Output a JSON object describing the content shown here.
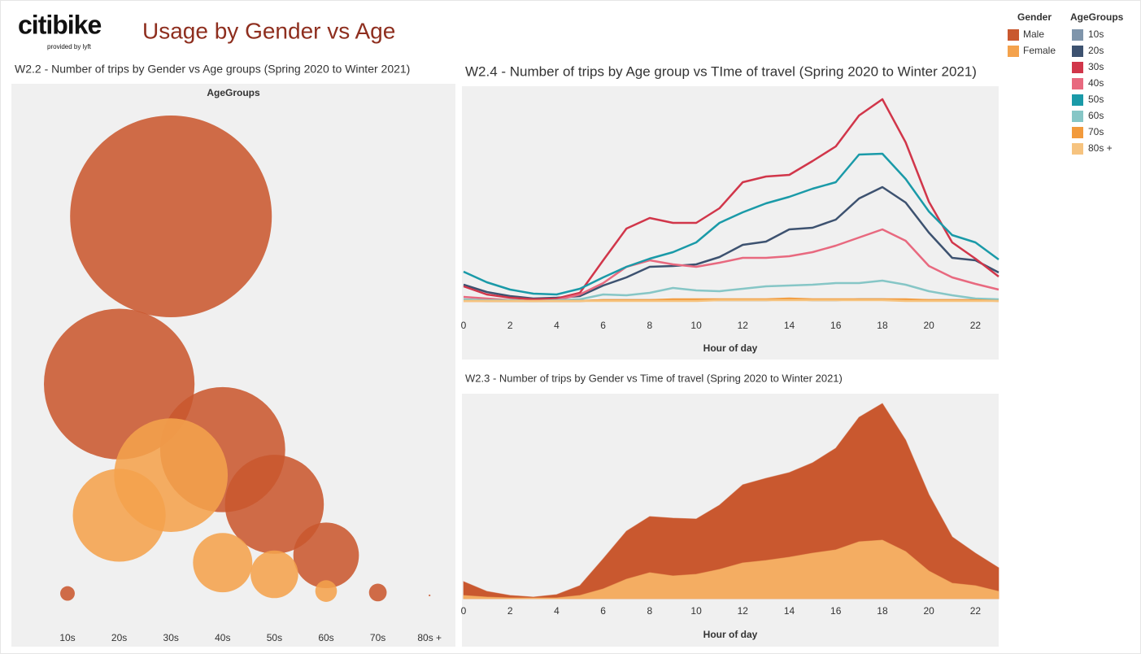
{
  "header": {
    "logo": "citibike",
    "logo_sub": "provided by lyft",
    "title": "Usage by Gender vs Age"
  },
  "chart_data": [
    {
      "type": "bubble",
      "title": "W2.2 - Number of trips by Gender vs Age groups (Spring 2020 to Winter 2021)",
      "x_label": "AgeGroups",
      "legend_title": "Gender",
      "categories": [
        "10s",
        "20s",
        "30s",
        "40s",
        "50s",
        "60s",
        "70s",
        "80s +"
      ],
      "series": [
        {
          "name": "Male",
          "color": "#c9582f",
          "values": [
            27000,
            2900000,
            5200000,
            2000000,
            1250000,
            550000,
            40000,
            400
          ]
        },
        {
          "name": "Female",
          "color": "#f4a24c",
          "values": [
            null,
            1100000,
            1650000,
            450000,
            290000,
            60000,
            null,
            null
          ]
        }
      ]
    },
    {
      "type": "line",
      "title": "W2.4 - Number of trips by Age group vs TIme of travel (Spring 2020 to Winter 2021)",
      "x_label": "Hour of day",
      "legend_title": "AgeGroups",
      "x": [
        0,
        1,
        2,
        3,
        4,
        5,
        6,
        7,
        8,
        9,
        10,
        11,
        12,
        13,
        14,
        15,
        16,
        17,
        18,
        19,
        20,
        21,
        22,
        23
      ],
      "xlim": [
        0,
        23
      ],
      "xticks": [
        0,
        2,
        4,
        6,
        8,
        10,
        12,
        14,
        16,
        18,
        20,
        22
      ],
      "series": [
        {
          "name": "10s",
          "color": "#7f95ab",
          "values": [
            1,
            0,
            0,
            0,
            0,
            0,
            1,
            1,
            1,
            1,
            1,
            1,
            1,
            1,
            2,
            1,
            1,
            2,
            2,
            1,
            1,
            1,
            1,
            1
          ]
        },
        {
          "name": "20s",
          "color": "#3d5270",
          "values": [
            20,
            11,
            6,
            3,
            4,
            6,
            19,
            29,
            42,
            43,
            45,
            54,
            69,
            73,
            88,
            90,
            100,
            126,
            140,
            121,
            84,
            53,
            50,
            35
          ]
        },
        {
          "name": "30s",
          "color": "#d1364a",
          "values": [
            18,
            8,
            4,
            2,
            3,
            10,
            50,
            89,
            102,
            96,
            96,
            114,
            146,
            153,
            155,
            172,
            190,
            228,
            248,
            195,
            122,
            72,
            52,
            30
          ]
        },
        {
          "name": "40s",
          "color": "#e8697f",
          "values": [
            5,
            3,
            1,
            0,
            1,
            8,
            22,
            42,
            50,
            45,
            42,
            47,
            53,
            53,
            55,
            60,
            68,
            78,
            88,
            74,
            43,
            29,
            21,
            14
          ]
        },
        {
          "name": "50s",
          "color": "#1a9aa8",
          "values": [
            36,
            23,
            14,
            9,
            8,
            15,
            29,
            42,
            52,
            60,
            72,
            96,
            109,
            120,
            128,
            138,
            146,
            180,
            181,
            150,
            110,
            81,
            72,
            51
          ]
        },
        {
          "name": "60s",
          "color": "#86c6c6",
          "values": [
            2,
            1,
            1,
            0,
            1,
            2,
            8,
            7,
            10,
            16,
            13,
            12,
            15,
            18,
            19,
            20,
            22,
            22,
            25,
            20,
            12,
            7,
            3,
            2
          ]
        },
        {
          "name": "70s",
          "color": "#f29a3c",
          "values": [
            0,
            0,
            0,
            0,
            0,
            0,
            1,
            1,
            1,
            2,
            2,
            2,
            2,
            2,
            3,
            2,
            2,
            2,
            2,
            2,
            1,
            1,
            1,
            0
          ]
        },
        {
          "name": "80s +",
          "color": "#f6c37f",
          "values": [
            0,
            0,
            0,
            0,
            0,
            0,
            0,
            0,
            0,
            0,
            0,
            1,
            1,
            1,
            1,
            1,
            1,
            1,
            1,
            0,
            0,
            0,
            0,
            0
          ]
        }
      ]
    },
    {
      "type": "area",
      "title": "W2.3 - Number of trips by Gender vs Time of travel (Spring 2020 to Winter 2021)",
      "x_label": "Hour of day",
      "x": [
        0,
        1,
        2,
        3,
        4,
        5,
        6,
        7,
        8,
        9,
        10,
        11,
        12,
        13,
        14,
        15,
        16,
        17,
        18,
        19,
        20,
        21,
        22,
        23
      ],
      "xlim": [
        0,
        23
      ],
      "xticks": [
        0,
        2,
        4,
        6,
        8,
        10,
        12,
        14,
        16,
        18,
        20,
        22
      ],
      "series": [
        {
          "name": "Male",
          "color": "#c9582f",
          "values": [
            21,
            9,
            4,
            2,
            5,
            16,
            49,
            83,
            101,
            99,
            98,
            115,
            140,
            148,
            155,
            167,
            185,
            223,
            240,
            195,
            128,
            76,
            56,
            38
          ]
        },
        {
          "name": "Female",
          "color": "#f4ad62",
          "values": [
            4,
            2,
            1,
            1,
            1,
            4,
            12,
            24,
            32,
            28,
            30,
            36,
            44,
            47,
            51,
            56,
            60,
            70,
            72,
            58,
            34,
            19,
            16,
            9
          ]
        }
      ]
    }
  ]
}
